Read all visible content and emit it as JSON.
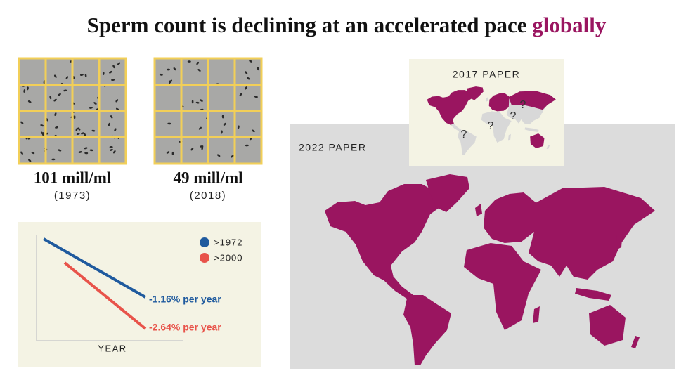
{
  "title": {
    "text": "Sperm count is declining at an accelerated pace",
    "highlight": "globally"
  },
  "samples": [
    {
      "count": "101 mill/ml",
      "year": "(1973)"
    },
    {
      "count": "49 mill/ml",
      "year": "(2018)"
    }
  ],
  "trend_chart": {
    "legend": [
      ">1972",
      ">2000"
    ],
    "labels": [
      "-1.16% per year",
      "-2.64% per year"
    ],
    "x_label": "YEAR"
  },
  "maps": {
    "paper_2017": {
      "label": "2017 PAPER",
      "markers": [
        "?",
        "?",
        "?",
        "?"
      ]
    },
    "paper_2022": {
      "label": "2022 PAPER"
    }
  }
}
